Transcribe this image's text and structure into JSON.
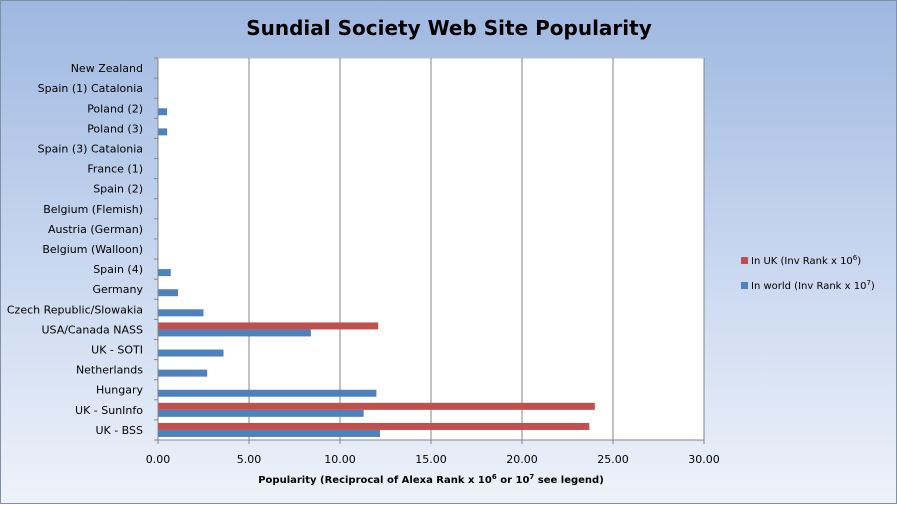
{
  "chart_data": {
    "type": "bar",
    "orientation": "horizontal",
    "title": "Sundial Society Web Site Popularity",
    "xlabel": "Popularity (Reciprocal  of Alexa Rank x 10⁶ or 10⁷ see legend)",
    "xlabel_parts": {
      "pre": "Popularity (Reciprocal  of Alexa Rank x 10",
      "sup1": "6",
      "mid": " or 10",
      "sup2": "7",
      "post": " see legend)"
    },
    "categories": [
      "UK - BSS",
      "UK - SunInfo",
      "Hungary",
      "Netherlands",
      "UK - SOTI",
      "USA/Canada NASS",
      "Czech Republic/Slowakia",
      "Germany",
      "Spain (4)",
      "Belgium (Walloon)",
      "Austria (German)",
      "Belgium (Flemish)",
      "Spain (2)",
      "France (1)",
      "Spain (3) Catalonia",
      "Poland (3)",
      "Poland (2)",
      "Spain (1) Catalonia",
      "New Zealand"
    ],
    "series": [
      {
        "name": "In UK (Inv Rank x 10⁶)",
        "label_pre": "In UK (Inv Rank x 10",
        "label_sup": "6",
        "label_post": ")",
        "color": "#c0504d",
        "values": [
          23.7,
          24.0,
          0,
          0,
          0,
          12.1,
          0,
          0,
          0,
          0,
          0,
          0,
          0,
          0,
          0,
          0,
          0,
          0,
          0
        ]
      },
      {
        "name": "In world  (Inv Rank x 10⁷)",
        "label_pre": "In world  (Inv Rank x 10",
        "label_sup": "7",
        "label_post": ")",
        "color": "#4f81bd",
        "values": [
          12.2,
          11.3,
          12.0,
          2.7,
          3.6,
          8.4,
          2.5,
          1.1,
          0.7,
          0,
          0,
          0,
          0,
          0,
          0,
          0.5,
          0.5,
          0,
          0
        ]
      }
    ],
    "xlim": [
      0,
      30
    ],
    "xticks": [
      "0.00",
      "5.00",
      "10.00",
      "15.00",
      "20.00",
      "25.00",
      "30.00"
    ],
    "grid": true,
    "legend_position": "right"
  }
}
